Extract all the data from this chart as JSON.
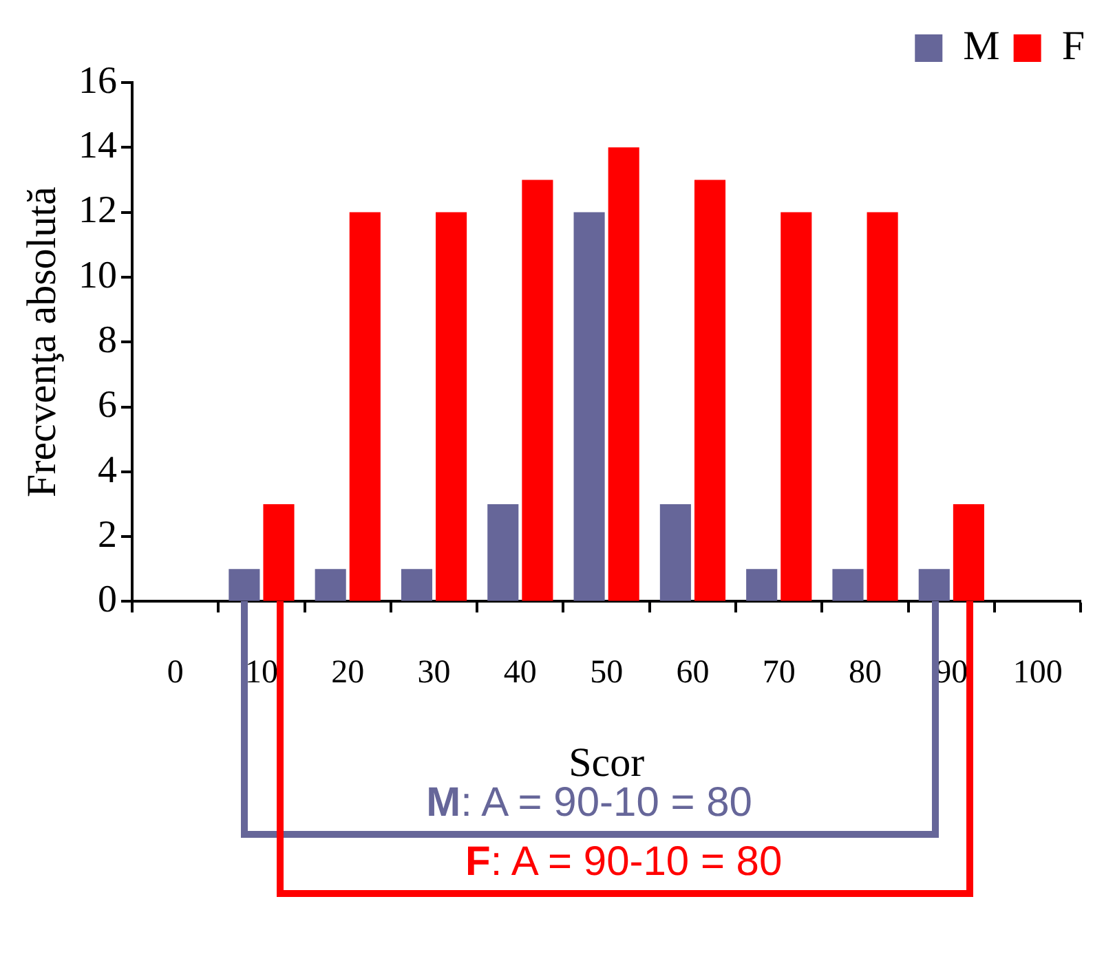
{
  "chart_data": {
    "type": "bar",
    "xlabel": "Scor",
    "ylabel": "Frecvenţa absolută",
    "categories": [
      "0",
      "10",
      "20",
      "30",
      "40",
      "50",
      "60",
      "70",
      "80",
      "90",
      "100"
    ],
    "series": [
      {
        "name": "M",
        "color": "#666699",
        "values": [
          0,
          1,
          1,
          1,
          3,
          12,
          3,
          1,
          1,
          1,
          0
        ]
      },
      {
        "name": "F",
        "color": "#ff0000",
        "values": [
          0,
          3,
          12,
          12,
          13,
          14,
          13,
          12,
          12,
          3,
          0
        ]
      }
    ],
    "ylim": [
      0,
      16
    ],
    "yticks": [
      0,
      2,
      4,
      6,
      8,
      10,
      12,
      14,
      16
    ],
    "grid": false,
    "legend": "top right",
    "annotations": [
      "M: A = 90-10 = 80",
      "F: A = 90-10 = 80"
    ]
  }
}
